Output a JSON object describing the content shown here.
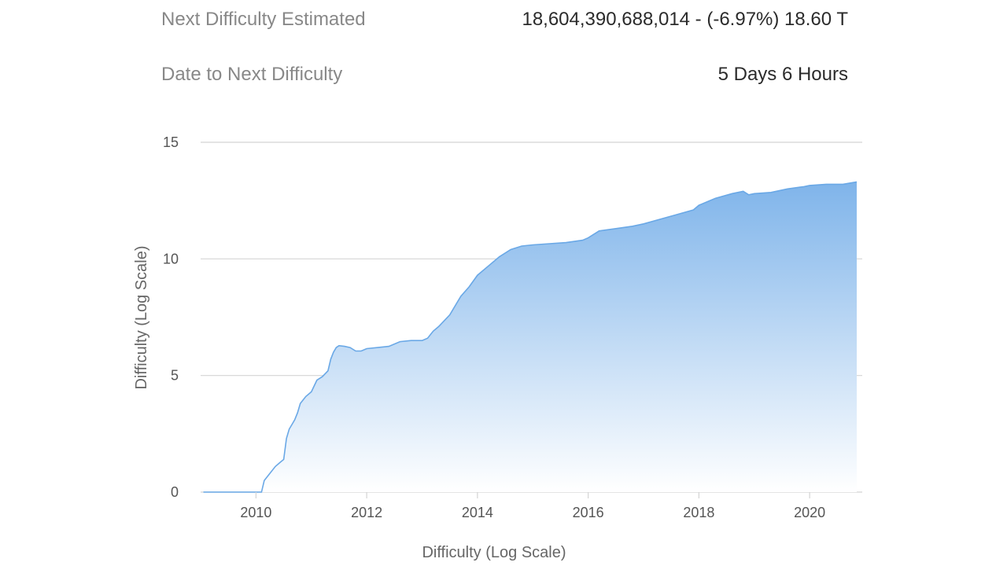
{
  "stats": {
    "next_difficulty": {
      "label": "Next Difficulty Estimated",
      "value": "18,604,390,688,014",
      "separator": " - ",
      "change": "(-6.97%) 18.60 T"
    },
    "date_to_next": {
      "label": "Date to Next Difficulty",
      "value": "5 Days 6 Hours"
    }
  },
  "chart_data": {
    "type": "area",
    "title": "",
    "xlabel": "Difficulty (Log Scale)",
    "ylabel": "Difficulty (Log Scale)",
    "xlim": [
      2009.0,
      2020.95
    ],
    "ylim": [
      0,
      15
    ],
    "x_ticks": [
      2010,
      2012,
      2014,
      2016,
      2018,
      2020
    ],
    "y_ticks": [
      0,
      5,
      10,
      15
    ],
    "grid": true,
    "legend": "none",
    "colors": {
      "fill_top": "#7fb4ea",
      "fill_bottom": "#ffffff",
      "line": "#6aa8e6",
      "grid": "#d4d4d4"
    },
    "series": [
      {
        "x": [
          2009.05,
          2009.5,
          2010.0,
          2010.1,
          2010.15,
          2010.25,
          2010.35,
          2010.45,
          2010.5,
          2010.55,
          2010.6,
          2010.65,
          2010.7,
          2010.75,
          2010.8,
          2010.9,
          2011.0,
          2011.1,
          2011.2,
          2011.3,
          2011.35,
          2011.4,
          2011.45,
          2011.5,
          2011.6,
          2011.7,
          2011.8,
          2011.9,
          2012.0,
          2012.2,
          2012.4,
          2012.6,
          2012.8,
          2013.0,
          2013.1,
          2013.2,
          2013.3,
          2013.5,
          2013.7,
          2013.85,
          2014.0,
          2014.2,
          2014.4,
          2014.6,
          2014.8,
          2015.0,
          2015.3,
          2015.6,
          2015.9,
          2016.0,
          2016.2,
          2016.5,
          2016.8,
          2017.0,
          2017.3,
          2017.6,
          2017.9,
          2018.0,
          2018.3,
          2018.6,
          2018.8,
          2018.9,
          2019.0,
          2019.3,
          2019.6,
          2019.9,
          2020.0,
          2020.3,
          2020.6,
          2020.85
        ],
        "y": [
          0.0,
          0.0,
          0.0,
          0.0,
          0.5,
          0.8,
          1.1,
          1.3,
          1.4,
          2.3,
          2.7,
          2.9,
          3.1,
          3.4,
          3.8,
          4.1,
          4.3,
          4.8,
          4.95,
          5.2,
          5.7,
          6.0,
          6.2,
          6.28,
          6.25,
          6.2,
          6.05,
          6.05,
          6.15,
          6.2,
          6.25,
          6.45,
          6.5,
          6.5,
          6.6,
          6.9,
          7.1,
          7.6,
          8.4,
          8.8,
          9.3,
          9.7,
          10.1,
          10.4,
          10.55,
          10.6,
          10.65,
          10.7,
          10.8,
          10.9,
          11.2,
          11.3,
          11.4,
          11.5,
          11.7,
          11.9,
          12.1,
          12.3,
          12.6,
          12.8,
          12.9,
          12.75,
          12.8,
          12.85,
          13.0,
          13.1,
          13.15,
          13.2,
          13.2,
          13.3
        ]
      }
    ]
  }
}
